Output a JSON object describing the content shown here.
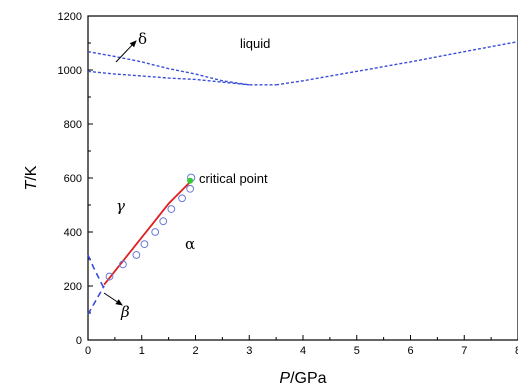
{
  "chart_data": {
    "type": "line",
    "xlabel_italic": "P",
    "xlabel_rest": "/GPa",
    "ylabel_italic": "T",
    "ylabel_rest": "/K",
    "xlim": [
      0,
      8
    ],
    "ylim": [
      0,
      1200
    ],
    "xticks": [
      "0",
      "1",
      "2",
      "3",
      "4",
      "5",
      "6",
      "7",
      "8"
    ],
    "yticks": [
      "0",
      "200",
      "400",
      "600",
      "800",
      "1000",
      "1200"
    ],
    "grid": false,
    "colors": {
      "boundary": "#3a4fd8",
      "fit_line": "#e02020",
      "markers": "#6a7ad8",
      "critical_point": "#33cc33"
    },
    "boundaries": [
      {
        "id": "delta-liquid-upper",
        "x": [
          0,
          0.5,
          1,
          1.5,
          2,
          2.5,
          3,
          3.5
        ],
        "y": [
          1068,
          1050,
          1030,
          1005,
          985,
          960,
          945,
          945
        ]
      },
      {
        "id": "delta-liquid-lower",
        "x": [
          0,
          0.5,
          1,
          1.5,
          2,
          2.5,
          3
        ],
        "y": [
          995,
          985,
          978,
          970,
          965,
          955,
          945
        ]
      },
      {
        "id": "alpha-liquid",
        "x": [
          3.5,
          4,
          5,
          6,
          7,
          8
        ],
        "y": [
          945,
          960,
          995,
          1030,
          1068,
          1105
        ]
      },
      {
        "id": "gamma-beta",
        "x": [
          0,
          0.1,
          0.2,
          0.3
        ],
        "y": [
          315,
          270,
          230,
          190
        ]
      },
      {
        "id": "alpha-beta",
        "x": [
          0,
          0.1,
          0.2,
          0.3
        ],
        "y": [
          95,
          130,
          165,
          200
        ]
      }
    ],
    "fit_line": {
      "x": [
        0.3,
        0.7,
        1.1,
        1.5,
        1.9
      ],
      "y": [
        205,
        305,
        405,
        505,
        585
      ]
    },
    "data_points": {
      "x": [
        0.4,
        0.65,
        0.9,
        1.05,
        1.25,
        1.4,
        1.55,
        1.75,
        1.9
      ],
      "y": [
        235,
        280,
        315,
        355,
        400,
        440,
        485,
        525,
        560
      ]
    },
    "critical_point": {
      "x": 1.9,
      "y": 590,
      "label": "critical point"
    },
    "phase_labels": {
      "liquid": {
        "text": "liquid",
        "x": 5.9,
        "y": 1110
      },
      "delta": {
        "text": "δ",
        "x": 1.05,
        "y": 1110
      },
      "gamma": {
        "text": "γ",
        "x": 1.25,
        "y": 500
      },
      "alpha": {
        "text": "α",
        "x": 3.05,
        "y": 355
      },
      "beta": {
        "text": "β",
        "x": 1.1,
        "y": 95
      }
    }
  }
}
